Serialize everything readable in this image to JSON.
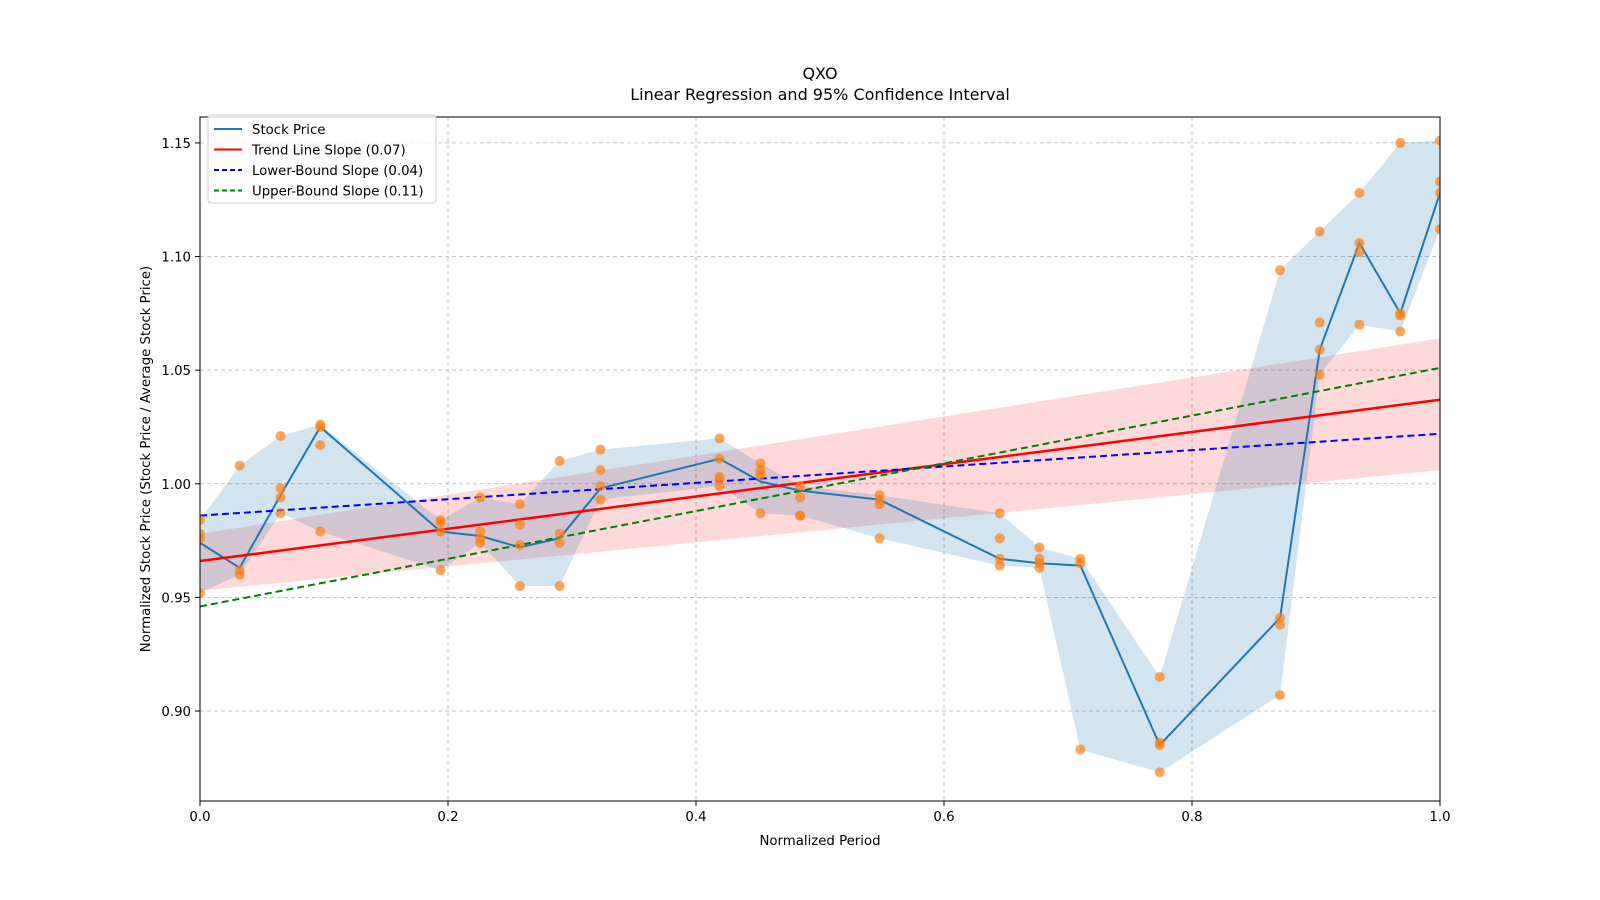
{
  "chart_data": {
    "type": "line",
    "title": "QXO",
    "subtitle": "Linear Regression and 95% Confidence Interval",
    "xlabel": "Normalized Period",
    "ylabel": "Normalized Stock Price (Stock Price / Average Stock Price)",
    "xlim": [
      0.0,
      1.0
    ],
    "ylim": [
      0.8604,
      1.1614
    ],
    "grid": true,
    "legend_position": "top-left",
    "xticks": [
      0.0,
      0.2,
      0.4,
      0.6,
      0.8,
      1.0
    ],
    "xtick_labels": [
      "0.0",
      "0.2",
      "0.4",
      "0.6",
      "0.8",
      "1.0"
    ],
    "yticks": [
      0.9,
      0.95,
      1.0,
      1.05,
      1.1,
      1.15
    ],
    "ytick_labels": [
      "0.90",
      "0.95",
      "1.00",
      "1.05",
      "1.10",
      "1.15"
    ],
    "legend": [
      {
        "label": "Stock Price",
        "color": "#1f77b4",
        "style": "solid"
      },
      {
        "label": "Trend Line Slope (0.07)",
        "color": "#ff0000",
        "style": "solid"
      },
      {
        "label": "Lower-Bound Slope (0.04)",
        "color": "#0000ff",
        "style": "dashed"
      },
      {
        "label": "Upper-Bound Slope (0.11)",
        "color": "#008000",
        "style": "dashed"
      }
    ],
    "x": [
      0.0,
      0.032,
      0.065,
      0.097,
      0.194,
      0.226,
      0.258,
      0.29,
      0.323,
      0.419,
      0.452,
      0.484,
      0.548,
      0.645,
      0.677,
      0.71,
      0.774,
      0.871,
      0.903,
      0.935,
      0.968,
      1.0
    ],
    "series": [
      {
        "name": "Stock Price",
        "color": "#1f77b4",
        "values": [
          0.974,
          0.963,
          0.995,
          1.025,
          0.979,
          0.977,
          0.972,
          0.976,
          0.998,
          1.011,
          1.001,
          0.997,
          0.993,
          0.967,
          0.965,
          0.964,
          0.885,
          0.941,
          1.059,
          1.106,
          1.075,
          1.128
        ]
      }
    ],
    "range_band": {
      "color": "#1f77b4",
      "upper": [
        0.984,
        1.008,
        1.021,
        1.026,
        0.984,
        0.994,
        0.991,
        1.01,
        1.015,
        1.02,
        1.009,
        0.999,
        0.995,
        0.987,
        0.972,
        0.967,
        0.915,
        1.094,
        1.111,
        1.128,
        1.15,
        1.151
      ],
      "lower": [
        0.952,
        0.96,
        0.987,
        0.979,
        0.962,
        0.974,
        0.955,
        0.955,
        0.993,
        0.999,
        0.987,
        0.986,
        0.976,
        0.964,
        0.963,
        0.883,
        0.873,
        0.907,
        1.048,
        1.07,
        1.067,
        1.112
      ]
    },
    "scatter": {
      "color": "#ff7f0e",
      "points": [
        [
          0.0,
          [
            0.984,
            0.978,
            0.976,
            0.952
          ]
        ],
        [
          0.032,
          [
            1.008,
            0.962,
            0.96
          ]
        ],
        [
          0.065,
          [
            1.021,
            0.998,
            0.994,
            0.987
          ]
        ],
        [
          0.097,
          [
            1.026,
            1.025,
            1.017,
            0.979
          ]
        ],
        [
          0.194,
          [
            0.984,
            0.983,
            0.979,
            0.962
          ]
        ],
        [
          0.226,
          [
            0.994,
            0.979,
            0.976,
            0.974
          ]
        ],
        [
          0.258,
          [
            0.991,
            0.982,
            0.973,
            0.955
          ]
        ],
        [
          0.29,
          [
            1.01,
            0.978,
            0.974,
            0.955
          ]
        ],
        [
          0.323,
          [
            1.015,
            1.006,
            0.999,
            0.993
          ]
        ],
        [
          0.419,
          [
            1.02,
            1.011,
            1.003,
            1.002,
            0.999
          ]
        ],
        [
          0.452,
          [
            1.009,
            1.006,
            1.004,
            0.987
          ]
        ],
        [
          0.484,
          [
            0.999,
            0.994,
            0.986,
            0.986
          ]
        ],
        [
          0.548,
          [
            0.995,
            0.993,
            0.991,
            0.976
          ]
        ],
        [
          0.645,
          [
            0.987,
            0.976,
            0.967,
            0.964
          ]
        ],
        [
          0.677,
          [
            0.972,
            0.967,
            0.965,
            0.963
          ]
        ],
        [
          0.71,
          [
            0.967,
            0.965,
            0.883
          ]
        ],
        [
          0.774,
          [
            0.915,
            0.886,
            0.885,
            0.873
          ]
        ],
        [
          0.871,
          [
            1.094,
            0.941,
            0.938,
            0.907
          ]
        ],
        [
          0.903,
          [
            1.111,
            1.071,
            1.059,
            1.048
          ]
        ],
        [
          0.935,
          [
            1.128,
            1.106,
            1.102,
            1.07
          ]
        ],
        [
          0.968,
          [
            1.15,
            1.075,
            1.074,
            1.067
          ]
        ],
        [
          1.0,
          [
            1.151,
            1.133,
            1.128,
            1.112
          ]
        ]
      ]
    },
    "trend_line": {
      "name": "Trend Line Slope (0.07)",
      "color": "#ff0000",
      "y_at_0": 0.966,
      "y_at_1": 1.037
    },
    "lower_bound": {
      "name": "Lower-Bound Slope (0.04)",
      "color": "#0000ff",
      "y_at_0": 0.986,
      "y_at_1": 1.022
    },
    "upper_bound": {
      "name": "Upper-Bound Slope (0.11)",
      "color": "#008000",
      "y_at_0": 0.946,
      "y_at_1": 1.051
    },
    "confidence_band": {
      "color": "#ff0000",
      "upper_at_0": 0.978,
      "upper_at_1": 1.064,
      "lower_at_0": 0.953,
      "lower_at_1": 1.006
    }
  }
}
